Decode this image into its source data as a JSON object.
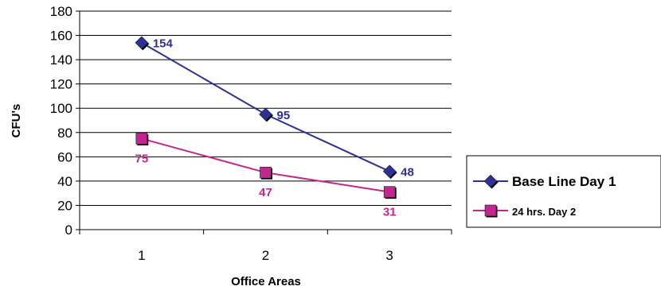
{
  "chart_data": {
    "type": "line",
    "title": "",
    "xlabel": "Office Areas",
    "ylabel": "CFU's",
    "categories": [
      "1",
      "2",
      "3"
    ],
    "ylim": [
      0,
      180
    ],
    "yticks": [
      0,
      20,
      40,
      60,
      80,
      100,
      120,
      140,
      160,
      180
    ],
    "grid": "horizontal",
    "legend_position": "right",
    "series": [
      {
        "name": "Base Line Day 1",
        "values": [
          154,
          95,
          48
        ],
        "color": "#2e3192",
        "marker": "diamond",
        "label_color": "#2e3192"
      },
      {
        "name": "24 hrs. Day 2",
        "values": [
          75,
          47,
          31
        ],
        "color": "#c2268f",
        "marker": "square",
        "label_color": "#c2268f"
      }
    ]
  }
}
